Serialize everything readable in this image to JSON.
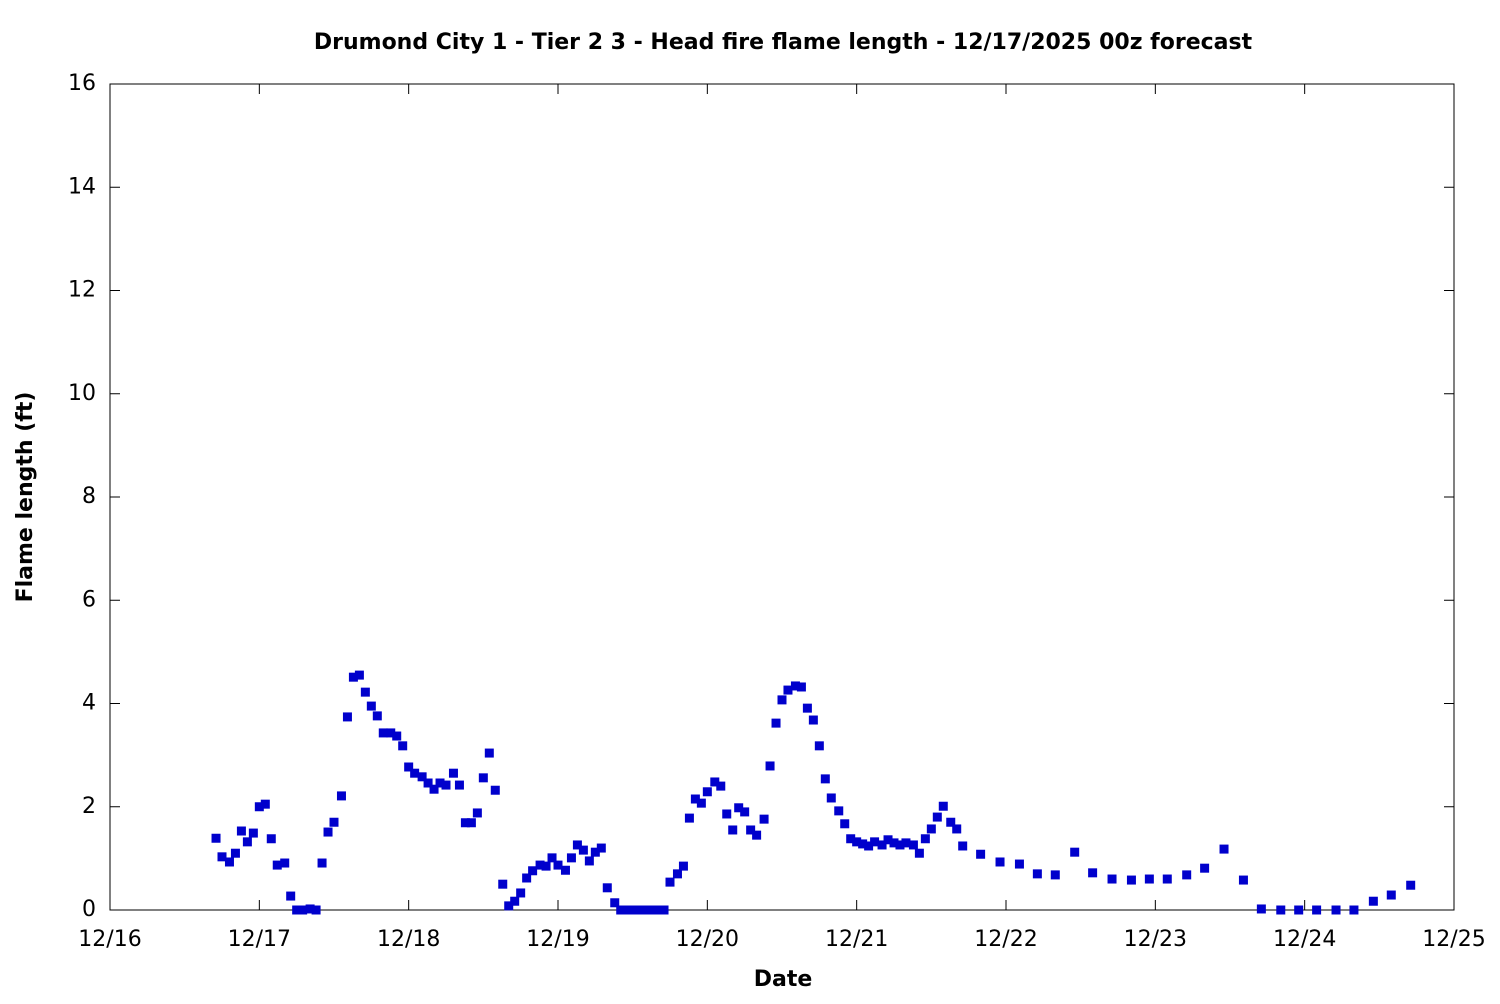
{
  "chart_data": {
    "type": "scatter",
    "title": "Drumond City 1 - Tier 2 3 - Head fire flame length - 12/17/2025 00z forecast",
    "xlabel": "Date",
    "ylabel": "Flame length (ft)",
    "xlim": [
      16,
      25
    ],
    "xticks": [
      {
        "value": 16,
        "label": "12/16"
      },
      {
        "value": 17,
        "label": "12/17"
      },
      {
        "value": 18,
        "label": "12/18"
      },
      {
        "value": 19,
        "label": "12/19"
      },
      {
        "value": 20,
        "label": "12/20"
      },
      {
        "value": 21,
        "label": "12/21"
      },
      {
        "value": 22,
        "label": "12/22"
      },
      {
        "value": 23,
        "label": "12/23"
      },
      {
        "value": 24,
        "label": "12/24"
      },
      {
        "value": 25,
        "label": "12/25"
      }
    ],
    "ylim": [
      0,
      16
    ],
    "yticks": [
      0,
      2,
      4,
      6,
      8,
      10,
      12,
      14,
      16
    ],
    "grid": false,
    "series": [
      {
        "color": "#0000cc",
        "x": [
          16.71,
          16.75,
          16.8,
          16.84,
          16.88,
          16.92,
          16.96,
          17.0,
          17.04,
          17.08,
          17.12,
          17.17,
          17.21,
          17.25,
          17.29,
          17.34,
          17.38,
          17.42,
          17.46,
          17.5,
          17.55,
          17.59,
          17.63,
          17.67,
          17.71,
          17.75,
          17.79,
          17.83,
          17.88,
          17.92,
          17.96,
          18.0,
          18.04,
          18.09,
          18.13,
          18.17,
          18.21,
          18.25,
          18.3,
          18.34,
          18.38,
          18.42,
          18.46,
          18.5,
          18.54,
          18.58,
          18.63,
          18.67,
          18.71,
          18.75,
          18.79,
          18.83,
          18.88,
          18.92,
          18.96,
          19.0,
          19.05,
          19.09,
          19.13,
          19.17,
          19.21,
          19.25,
          19.29,
          19.33,
          19.38,
          19.42,
          19.46,
          19.5,
          19.54,
          19.58,
          19.63,
          19.67,
          19.71,
          19.75,
          19.8,
          19.84,
          19.88,
          19.92,
          19.96,
          20.0,
          20.05,
          20.09,
          20.13,
          20.17,
          20.21,
          20.25,
          20.29,
          20.33,
          20.38,
          20.42,
          20.46,
          20.5,
          20.54,
          20.59,
          20.63,
          20.67,
          20.71,
          20.75,
          20.79,
          20.83,
          20.88,
          20.92,
          20.96,
          21.0,
          21.04,
          21.08,
          21.12,
          21.17,
          21.21,
          21.25,
          21.29,
          21.33,
          21.38,
          21.42,
          21.46,
          21.5,
          21.54,
          21.58,
          21.63,
          21.67,
          21.71,
          21.83,
          21.96,
          22.09,
          22.21,
          22.33,
          22.46,
          22.58,
          22.71,
          22.84,
          22.96,
          23.08,
          23.21,
          23.33,
          23.46,
          23.59,
          23.71,
          23.84,
          23.96,
          24.08,
          24.21,
          24.33,
          24.46,
          24.58,
          24.71
        ],
        "values": [
          1.39,
          1.03,
          0.93,
          1.1,
          1.53,
          1.32,
          1.49,
          2.0,
          2.05,
          1.38,
          0.87,
          0.91,
          0.27,
          0,
          0,
          0.02,
          0,
          0.91,
          1.51,
          1.7,
          2.21,
          3.74,
          4.51,
          4.55,
          4.22,
          3.95,
          3.76,
          3.43,
          3.43,
          3.37,
          3.18,
          2.77,
          2.65,
          2.58,
          2.46,
          2.34,
          2.46,
          2.42,
          2.65,
          2.42,
          1.69,
          1.69,
          1.88,
          2.56,
          3.04,
          2.32,
          0.5,
          0.08,
          0.17,
          0.33,
          0.62,
          0.76,
          0.87,
          0.85,
          1.01,
          0.87,
          0.77,
          1.01,
          1.26,
          1.16,
          0.95,
          1.12,
          1.2,
          0.43,
          0.14,
          0,
          0,
          0,
          0,
          0,
          0,
          0,
          0,
          0.54,
          0.7,
          0.85,
          1.78,
          2.15,
          2.07,
          2.29,
          2.48,
          2.4,
          1.86,
          1.55,
          1.98,
          1.9,
          1.55,
          1.45,
          1.76,
          2.79,
          3.62,
          4.07,
          4.26,
          4.34,
          4.32,
          3.91,
          3.68,
          3.18,
          2.54,
          2.17,
          1.92,
          1.67,
          1.38,
          1.32,
          1.28,
          1.24,
          1.32,
          1.26,
          1.36,
          1.3,
          1.26,
          1.3,
          1.26,
          1.1,
          1.38,
          1.57,
          1.8,
          2.01,
          1.7,
          1.57,
          1.24,
          1.08,
          0.93,
          0.89,
          0.7,
          0.68,
          1.12,
          0.72,
          0.6,
          0.58,
          0.6,
          0.6,
          0.68,
          0.81,
          1.18,
          0.58,
          0.02,
          0,
          0,
          0,
          0,
          0,
          0.17,
          0.29,
          0.48
        ]
      }
    ]
  }
}
